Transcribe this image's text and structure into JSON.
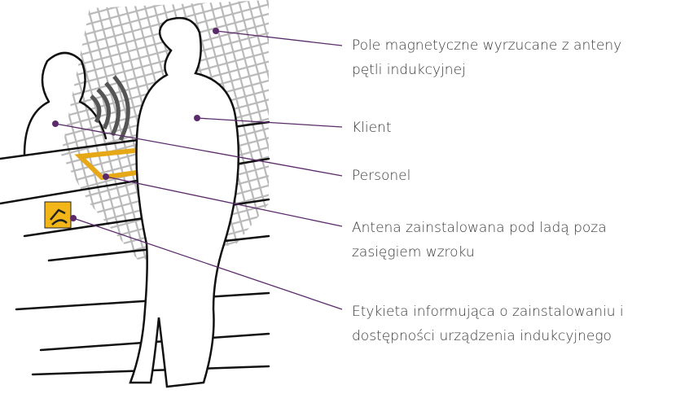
{
  "labels": [
    {
      "lines": [
        "Pole magnetyczne wyrzucane z anteny",
        "pętli indukcyjnej"
      ]
    },
    {
      "lines": [
        "Klient"
      ]
    },
    {
      "lines": [
        "Personel"
      ]
    },
    {
      "lines": [
        "Antena zainstalowana pod ladą poza",
        "zasięgiem wzroku"
      ]
    },
    {
      "lines": [
        "Etykieta informująca o zainstalowaniu i",
        "dostępności urządzenia indukcyjnego"
      ]
    }
  ]
}
